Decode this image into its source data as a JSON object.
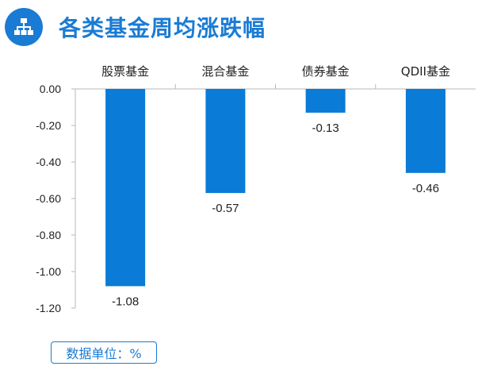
{
  "header": {
    "title": "各类基金周均涨跌幅",
    "logo_icon": "org-chart-icon",
    "accent_color": "#1a7bd4"
  },
  "unit_label": "数据单位：%",
  "chart_data": {
    "type": "bar",
    "title": "各类基金周均涨跌幅",
    "categories": [
      "股票基金",
      "混合基金",
      "债券基金",
      "QDII基金"
    ],
    "values": [
      -1.08,
      -0.57,
      -0.13,
      -0.46
    ],
    "value_labels": [
      "-1.08",
      "-0.57",
      "-0.13",
      "-0.46"
    ],
    "ylim": [
      -1.2,
      0
    ],
    "yticks": [
      0,
      -0.2,
      -0.4,
      -0.6,
      -0.8,
      -1.0,
      -1.2
    ],
    "ytick_labels": [
      "0.00",
      "-0.20",
      "-0.40",
      "-0.60",
      "-0.80",
      "-1.00",
      "-1.20"
    ],
    "bar_color": "#0a7bd6",
    "category_axis_position": "top",
    "grid": false,
    "legend": "none"
  }
}
